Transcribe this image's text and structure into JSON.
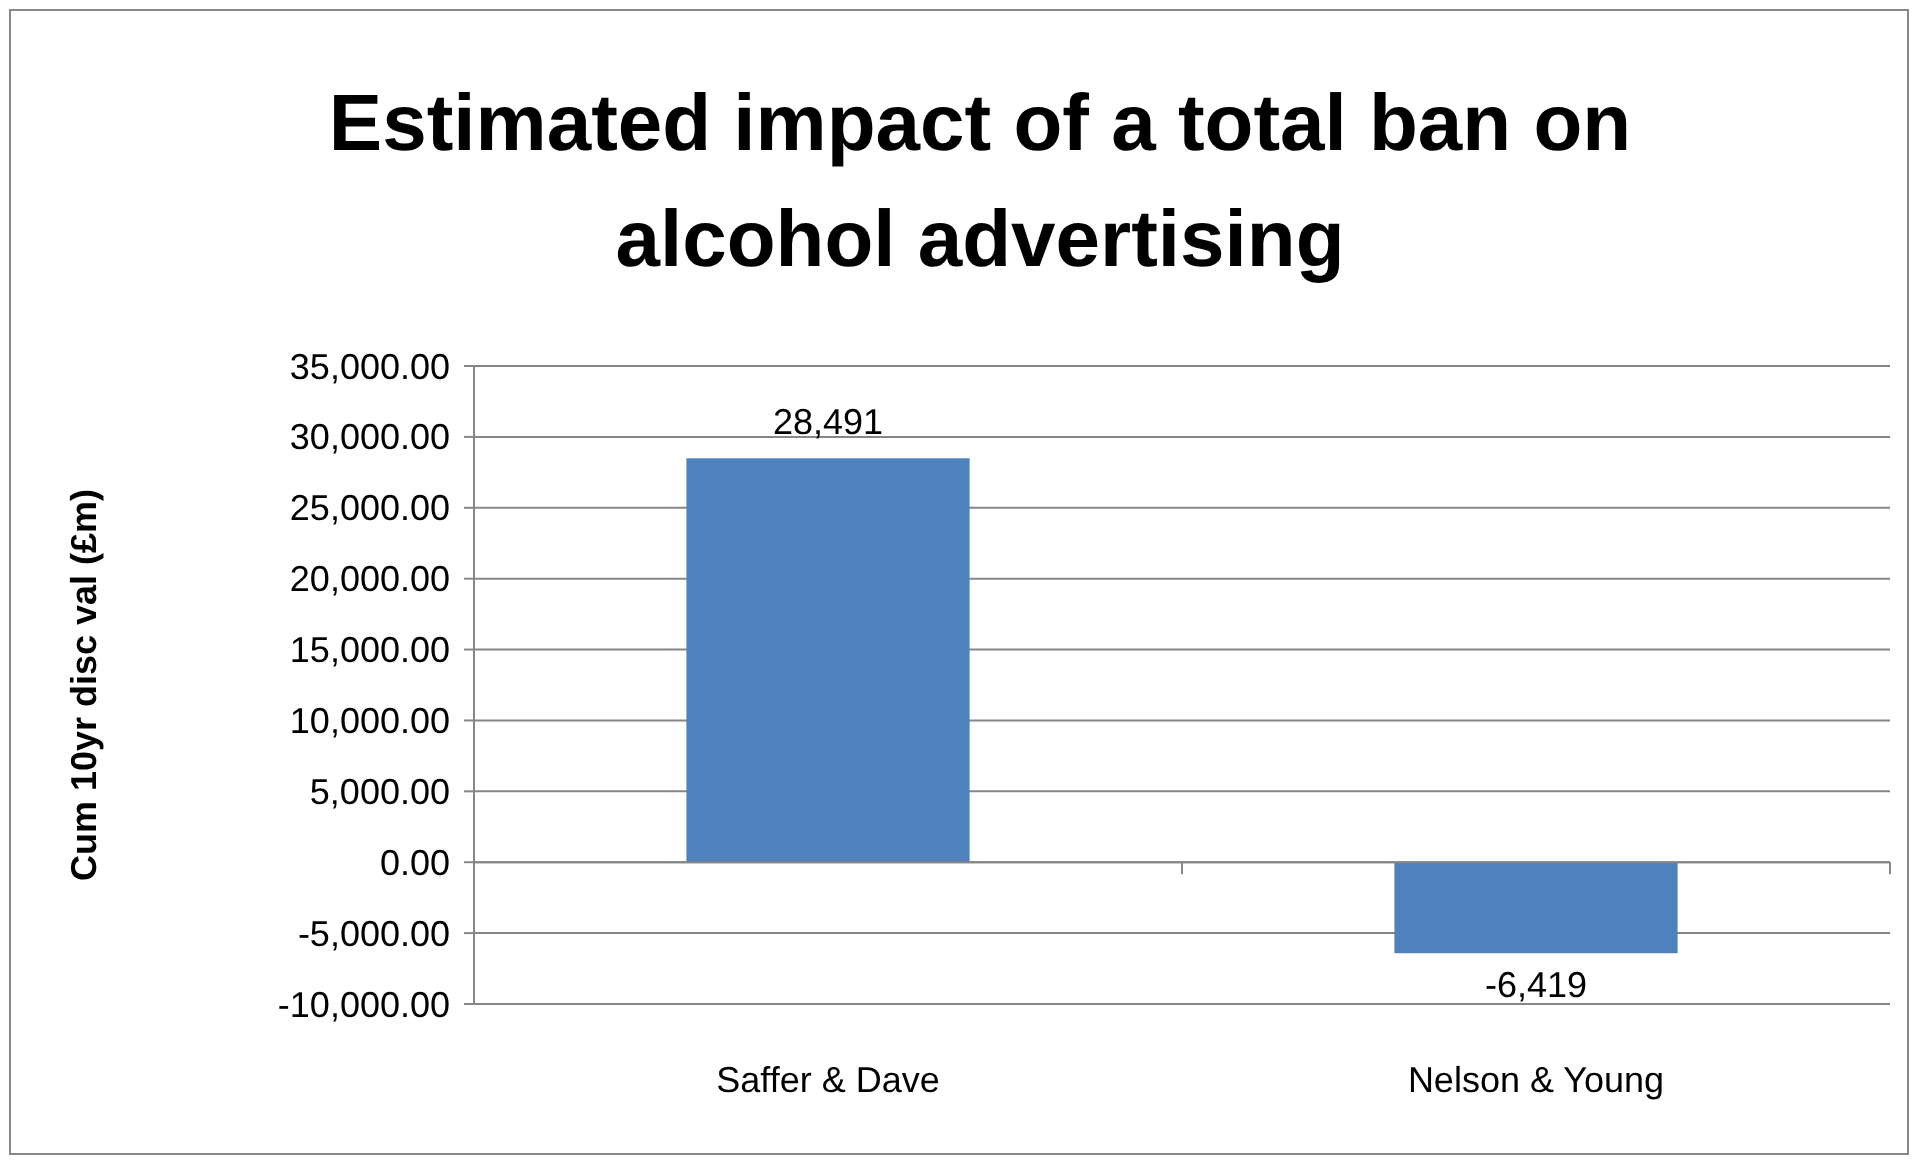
{
  "chart_data": {
    "type": "bar",
    "title": "Estimated impact of a total ban on alcohol advertising",
    "ylabel": "Cum 10yr disc val (£m)",
    "categories": [
      "Saffer & Dave",
      "Nelson & Young"
    ],
    "values": [
      28491,
      -6419
    ],
    "value_labels": [
      "28,491",
      "-6,419"
    ],
    "color": "#4f81bd",
    "grid": "y",
    "ylim": [
      -10000,
      35000
    ],
    "yticks": [
      {
        "value": -10000,
        "label": "-10,000.00"
      },
      {
        "value": -5000,
        "label": "-5,000.00"
      },
      {
        "value": 0,
        "label": "0.00"
      },
      {
        "value": 5000,
        "label": "5,000.00"
      },
      {
        "value": 10000,
        "label": "10,000.00"
      },
      {
        "value": 15000,
        "label": "15,000.00"
      },
      {
        "value": 20000,
        "label": "20,000.00"
      },
      {
        "value": 25000,
        "label": "25,000.00"
      },
      {
        "value": 30000,
        "label": "30,000.00"
      },
      {
        "value": 35000,
        "label": "35,000.00"
      }
    ]
  }
}
